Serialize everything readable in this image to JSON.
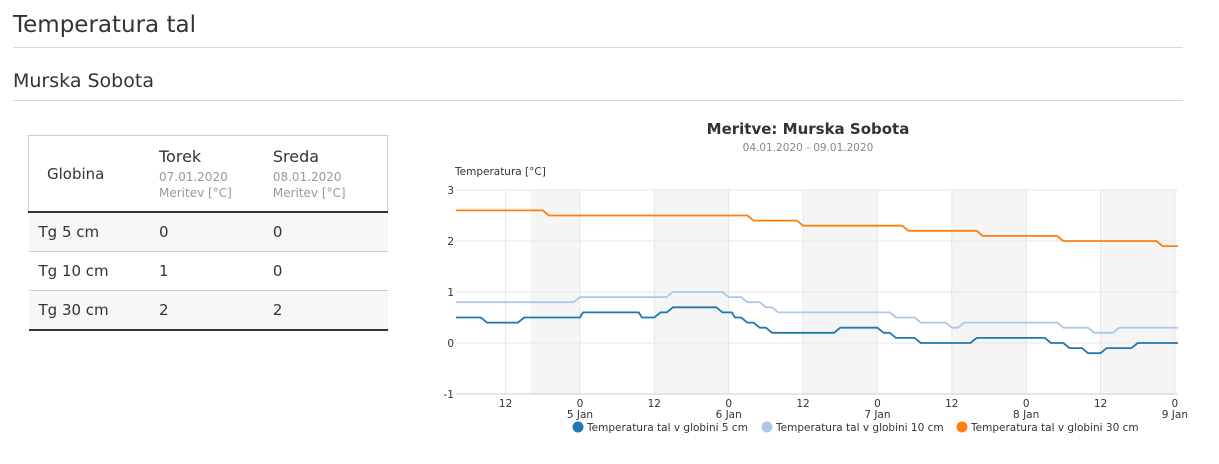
{
  "page": {
    "title": "Temperatura tal",
    "station": "Murska Sobota"
  },
  "table": {
    "depth_header": "Globina",
    "days": [
      {
        "name": "Torek",
        "date": "07.01.2020",
        "unit": "Meritev [°C]"
      },
      {
        "name": "Sreda",
        "date": "08.01.2020",
        "unit": "Meritev [°C]"
      }
    ],
    "rows": [
      {
        "label": "Tg 5 cm",
        "values": [
          "0",
          "0"
        ]
      },
      {
        "label": "Tg 10 cm",
        "values": [
          "1",
          "0"
        ]
      },
      {
        "label": "Tg 30 cm",
        "values": [
          "2",
          "2"
        ]
      }
    ]
  },
  "chart_data": {
    "type": "line",
    "title": "Meritve: Murska Sobota",
    "subtitle": "04.01.2020 - 09.01.2020",
    "ylabel": "Temperatura [°C]",
    "ylim": [
      -1,
      3
    ],
    "y_ticks": [
      "3",
      "2",
      "1",
      "0",
      "-1"
    ],
    "xlim_hours_note": "",
    "grid": true,
    "legend_position": "bottom",
    "x_ticks": [
      {
        "label": "12",
        "sub": ""
      },
      {
        "label": "0",
        "sub": "5 Jan"
      },
      {
        "label": "12",
        "sub": ""
      },
      {
        "label": "0",
        "sub": "6 Jan"
      },
      {
        "label": "12",
        "sub": ""
      },
      {
        "label": "0",
        "sub": "7 Jan"
      },
      {
        "label": "12",
        "sub": ""
      },
      {
        "label": "0",
        "sub": "8 Jan"
      },
      {
        "label": "12",
        "sub": ""
      },
      {
        "label": "0",
        "sub": "9 Jan"
      }
    ],
    "series": [
      {
        "name": "Temperatura tal v globini 5 cm",
        "color": "#1f77b4",
        "points": [
          [
            "2020-01-04 04:00",
            0.5
          ],
          [
            "2020-01-04 08:00",
            0.5
          ],
          [
            "2020-01-04 09:00",
            0.4
          ],
          [
            "2020-01-04 14:00",
            0.4
          ],
          [
            "2020-01-04 15:00",
            0.5
          ],
          [
            "2020-01-05 00:00",
            0.5
          ],
          [
            "2020-01-05 00:30",
            0.6
          ],
          [
            "2020-01-05 09:30",
            0.6
          ],
          [
            "2020-01-05 10:00",
            0.5
          ],
          [
            "2020-01-05 12:00",
            0.5
          ],
          [
            "2020-01-05 13:00",
            0.6
          ],
          [
            "2020-01-05 14:00",
            0.6
          ],
          [
            "2020-01-05 15:00",
            0.7
          ],
          [
            "2020-01-05 22:00",
            0.7
          ],
          [
            "2020-01-05 23:00",
            0.6
          ],
          [
            "2020-01-06 00:30",
            0.6
          ],
          [
            "2020-01-06 01:00",
            0.5
          ],
          [
            "2020-01-06 02:00",
            0.5
          ],
          [
            "2020-01-06 03:00",
            0.4
          ],
          [
            "2020-01-06 04:00",
            0.4
          ],
          [
            "2020-01-06 05:00",
            0.3
          ],
          [
            "2020-01-06 06:00",
            0.3
          ],
          [
            "2020-01-06 07:00",
            0.2
          ],
          [
            "2020-01-06 17:00",
            0.2
          ],
          [
            "2020-01-06 18:00",
            0.3
          ],
          [
            "2020-01-07 00:00",
            0.3
          ],
          [
            "2020-01-07 01:00",
            0.2
          ],
          [
            "2020-01-07 02:00",
            0.2
          ],
          [
            "2020-01-07 03:00",
            0.1
          ],
          [
            "2020-01-07 06:00",
            0.1
          ],
          [
            "2020-01-07 07:00",
            0.0
          ],
          [
            "2020-01-07 15:00",
            0.0
          ],
          [
            "2020-01-07 16:00",
            0.1
          ],
          [
            "2020-01-08 03:00",
            0.1
          ],
          [
            "2020-01-08 04:00",
            0.0
          ],
          [
            "2020-01-08 06:00",
            0.0
          ],
          [
            "2020-01-08 07:00",
            -0.1
          ],
          [
            "2020-01-08 09:00",
            -0.1
          ],
          [
            "2020-01-08 10:00",
            -0.2
          ],
          [
            "2020-01-08 12:00",
            -0.2
          ],
          [
            "2020-01-08 13:00",
            -0.1
          ],
          [
            "2020-01-08 17:00",
            -0.1
          ],
          [
            "2020-01-08 18:00",
            0.0
          ],
          [
            "2020-01-09 00:30",
            0.0
          ]
        ]
      },
      {
        "name": "Temperatura tal v globini 10 cm",
        "color": "#aec7e8",
        "points": [
          [
            "2020-01-04 04:00",
            0.8
          ],
          [
            "2020-01-04 23:00",
            0.8
          ],
          [
            "2020-01-05 00:00",
            0.9
          ],
          [
            "2020-01-05 14:00",
            0.9
          ],
          [
            "2020-01-05 15:00",
            1.0
          ],
          [
            "2020-01-05 23:00",
            1.0
          ],
          [
            "2020-01-06 00:00",
            0.9
          ],
          [
            "2020-01-06 02:00",
            0.9
          ],
          [
            "2020-01-06 03:00",
            0.8
          ],
          [
            "2020-01-06 05:00",
            0.8
          ],
          [
            "2020-01-06 06:00",
            0.7
          ],
          [
            "2020-01-06 07:00",
            0.7
          ],
          [
            "2020-01-06 08:00",
            0.6
          ],
          [
            "2020-01-07 02:00",
            0.6
          ],
          [
            "2020-01-07 03:00",
            0.5
          ],
          [
            "2020-01-07 06:00",
            0.5
          ],
          [
            "2020-01-07 07:00",
            0.4
          ],
          [
            "2020-01-07 11:00",
            0.4
          ],
          [
            "2020-01-07 12:00",
            0.3
          ],
          [
            "2020-01-07 13:00",
            0.3
          ],
          [
            "2020-01-07 14:00",
            0.4
          ],
          [
            "2020-01-08 05:00",
            0.4
          ],
          [
            "2020-01-08 06:00",
            0.3
          ],
          [
            "2020-01-08 10:00",
            0.3
          ],
          [
            "2020-01-08 11:00",
            0.2
          ],
          [
            "2020-01-08 14:00",
            0.2
          ],
          [
            "2020-01-08 15:00",
            0.3
          ],
          [
            "2020-01-09 00:30",
            0.3
          ]
        ]
      },
      {
        "name": "Temperatura tal v globini 30 cm",
        "color": "#ff7f0e",
        "points": [
          [
            "2020-01-04 04:00",
            2.6
          ],
          [
            "2020-01-04 18:00",
            2.6
          ],
          [
            "2020-01-04 19:00",
            2.5
          ],
          [
            "2020-01-06 03:00",
            2.5
          ],
          [
            "2020-01-06 04:00",
            2.4
          ],
          [
            "2020-01-06 11:00",
            2.4
          ],
          [
            "2020-01-06 12:00",
            2.3
          ],
          [
            "2020-01-07 04:00",
            2.3
          ],
          [
            "2020-01-07 05:00",
            2.2
          ],
          [
            "2020-01-07 16:00",
            2.2
          ],
          [
            "2020-01-07 17:00",
            2.1
          ],
          [
            "2020-01-08 05:00",
            2.1
          ],
          [
            "2020-01-08 06:00",
            2.0
          ],
          [
            "2020-01-08 21:00",
            2.0
          ],
          [
            "2020-01-08 22:00",
            1.9
          ],
          [
            "2020-01-09 00:30",
            1.9
          ]
        ]
      }
    ]
  }
}
